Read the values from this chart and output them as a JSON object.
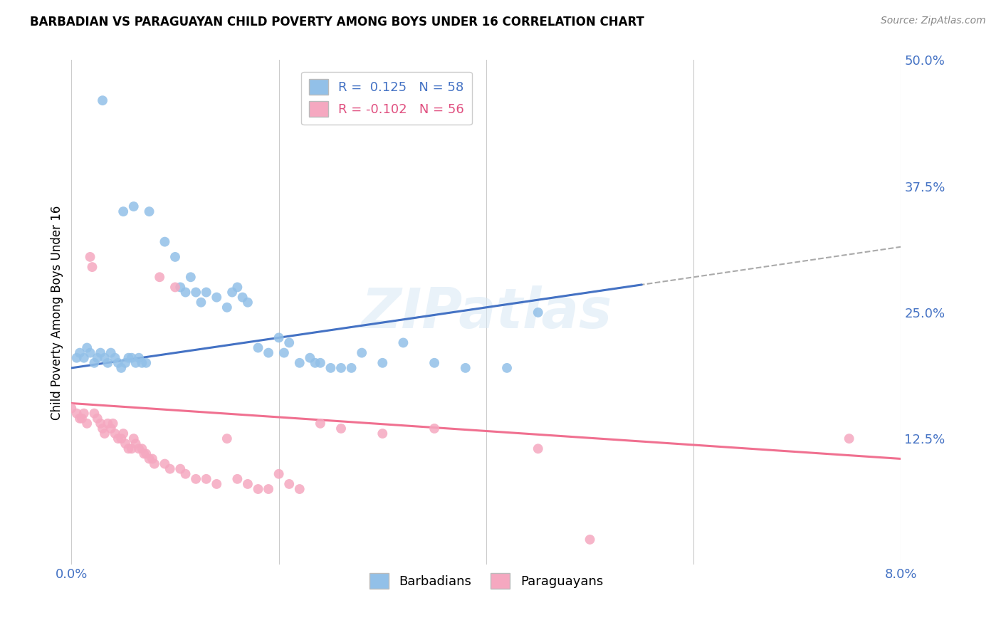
{
  "title": "BARBADIAN VS PARAGUAYAN CHILD POVERTY AMONG BOYS UNDER 16 CORRELATION CHART",
  "source": "Source: ZipAtlas.com",
  "ylabel": "Child Poverty Among Boys Under 16",
  "xlim": [
    0.0,
    8.0
  ],
  "ylim": [
    0.0,
    50.0
  ],
  "yticks": [
    0.0,
    12.5,
    25.0,
    37.5,
    50.0
  ],
  "ytick_labels": [
    "",
    "12.5%",
    "25.0%",
    "37.5%",
    "50.0%"
  ],
  "xticks": [
    0.0,
    2.0,
    4.0,
    6.0,
    8.0
  ],
  "xtick_labels": [
    "0.0%",
    "",
    "",
    "",
    "8.0%"
  ],
  "watermark": "ZIPatlas",
  "legend_r1": "R =  0.125",
  "legend_n1": "N = 58",
  "legend_r2": "R = -0.102",
  "legend_n2": "N = 56",
  "color_blue": "#92C0E8",
  "color_pink": "#F5A8C0",
  "color_blue_text": "#4472C4",
  "color_pink_text": "#E05080",
  "color_trendline_blue": "#4472C4",
  "color_trendline_pink": "#F07090",
  "color_trendline_dashed": "#AAAAAA",
  "blue_trend_x0": 0.0,
  "blue_trend_y0": 19.5,
  "blue_trend_x1": 8.0,
  "blue_trend_y1": 31.5,
  "pink_trend_x0": 0.0,
  "pink_trend_y0": 16.0,
  "pink_trend_x1": 8.0,
  "pink_trend_y1": 10.5,
  "dashed_start_x": 3.0,
  "barbadians_x": [
    0.3,
    0.5,
    0.6,
    0.75,
    0.9,
    1.0,
    1.05,
    1.1,
    1.15,
    1.2,
    1.25,
    1.3,
    1.4,
    1.5,
    1.55,
    1.6,
    1.65,
    1.7,
    1.8,
    1.9,
    2.0,
    2.05,
    2.1,
    2.2,
    2.3,
    2.35,
    2.4,
    2.5,
    2.6,
    2.7,
    2.8,
    3.0,
    3.2,
    3.5,
    3.8,
    4.2,
    4.5,
    0.05,
    0.08,
    0.12,
    0.15,
    0.18,
    0.22,
    0.25,
    0.28,
    0.32,
    0.35,
    0.38,
    0.42,
    0.45,
    0.48,
    0.52,
    0.55,
    0.58,
    0.62,
    0.65,
    0.68,
    0.72
  ],
  "barbadians_y": [
    46.0,
    35.0,
    35.5,
    35.0,
    32.0,
    30.5,
    27.5,
    27.0,
    28.5,
    27.0,
    26.0,
    27.0,
    26.5,
    25.5,
    27.0,
    27.5,
    26.5,
    26.0,
    21.5,
    21.0,
    22.5,
    21.0,
    22.0,
    20.0,
    20.5,
    20.0,
    20.0,
    19.5,
    19.5,
    19.5,
    21.0,
    20.0,
    22.0,
    20.0,
    19.5,
    19.5,
    25.0,
    20.5,
    21.0,
    20.5,
    21.5,
    21.0,
    20.0,
    20.5,
    21.0,
    20.5,
    20.0,
    21.0,
    20.5,
    20.0,
    19.5,
    20.0,
    20.5,
    20.5,
    20.0,
    20.5,
    20.0,
    20.0
  ],
  "paraguayans_x": [
    0.0,
    0.05,
    0.08,
    0.1,
    0.12,
    0.15,
    0.18,
    0.2,
    0.22,
    0.25,
    0.28,
    0.3,
    0.32,
    0.35,
    0.38,
    0.4,
    0.42,
    0.45,
    0.48,
    0.5,
    0.52,
    0.55,
    0.58,
    0.6,
    0.62,
    0.65,
    0.68,
    0.7,
    0.72,
    0.75,
    0.78,
    0.8,
    0.85,
    0.9,
    0.95,
    1.0,
    1.05,
    1.1,
    1.2,
    1.3,
    1.4,
    1.5,
    1.6,
    1.7,
    1.8,
    1.9,
    2.0,
    2.1,
    2.2,
    2.4,
    2.6,
    3.0,
    3.5,
    4.5,
    5.0,
    7.5
  ],
  "paraguayans_y": [
    15.5,
    15.0,
    14.5,
    14.5,
    15.0,
    14.0,
    30.5,
    29.5,
    15.0,
    14.5,
    14.0,
    13.5,
    13.0,
    14.0,
    13.5,
    14.0,
    13.0,
    12.5,
    12.5,
    13.0,
    12.0,
    11.5,
    11.5,
    12.5,
    12.0,
    11.5,
    11.5,
    11.0,
    11.0,
    10.5,
    10.5,
    10.0,
    28.5,
    10.0,
    9.5,
    27.5,
    9.5,
    9.0,
    8.5,
    8.5,
    8.0,
    12.5,
    8.5,
    8.0,
    7.5,
    7.5,
    9.0,
    8.0,
    7.5,
    14.0,
    13.5,
    13.0,
    13.5,
    11.5,
    2.5,
    12.5
  ]
}
